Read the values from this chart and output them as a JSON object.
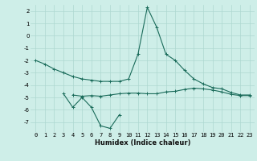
{
  "x": [
    0,
    1,
    2,
    3,
    4,
    5,
    6,
    7,
    8,
    9,
    10,
    11,
    12,
    13,
    14,
    15,
    16,
    17,
    18,
    19,
    20,
    21,
    22,
    23
  ],
  "line_main": [
    -2.0,
    -2.3,
    -2.7,
    -3.0,
    -3.3,
    -3.5,
    -3.6,
    -3.7,
    -3.7,
    -3.7,
    -3.5,
    -1.5,
    2.3,
    0.7,
    -1.5,
    -2.0,
    -2.8,
    -3.5,
    -3.9,
    -4.2,
    -4.3,
    -4.6,
    -4.8,
    -4.8
  ],
  "line_lower": [
    null,
    null,
    null,
    -4.7,
    -5.8,
    -5.0,
    -5.8,
    -7.3,
    -7.5,
    -6.4,
    null,
    null,
    null,
    null,
    null,
    null,
    null,
    null,
    null,
    null,
    null,
    null,
    null,
    null
  ],
  "line_flat": [
    null,
    null,
    null,
    null,
    -4.8,
    -4.9,
    -4.85,
    -4.9,
    -4.8,
    -4.7,
    -4.65,
    -4.65,
    -4.7,
    -4.7,
    -4.55,
    -4.5,
    -4.35,
    -4.25,
    -4.3,
    -4.4,
    -4.55,
    -4.75,
    -4.85,
    -4.85
  ],
  "bg_color": "#ceeee8",
  "grid_color": "#aed8d0",
  "line_color": "#1a6b5a",
  "xlabel": "Humidex (Indice chaleur)",
  "ylim": [
    -7.8,
    2.5
  ],
  "xlim": [
    -0.5,
    23.5
  ],
  "yticks": [
    2,
    1,
    0,
    -1,
    -2,
    -3,
    -4,
    -5,
    -6,
    -7
  ],
  "xticks": [
    0,
    1,
    2,
    3,
    4,
    5,
    6,
    7,
    8,
    9,
    10,
    11,
    12,
    13,
    14,
    15,
    16,
    17,
    18,
    19,
    20,
    21,
    22,
    23
  ],
  "xlabel_fontsize": 6.0,
  "tick_fontsize": 5.0
}
